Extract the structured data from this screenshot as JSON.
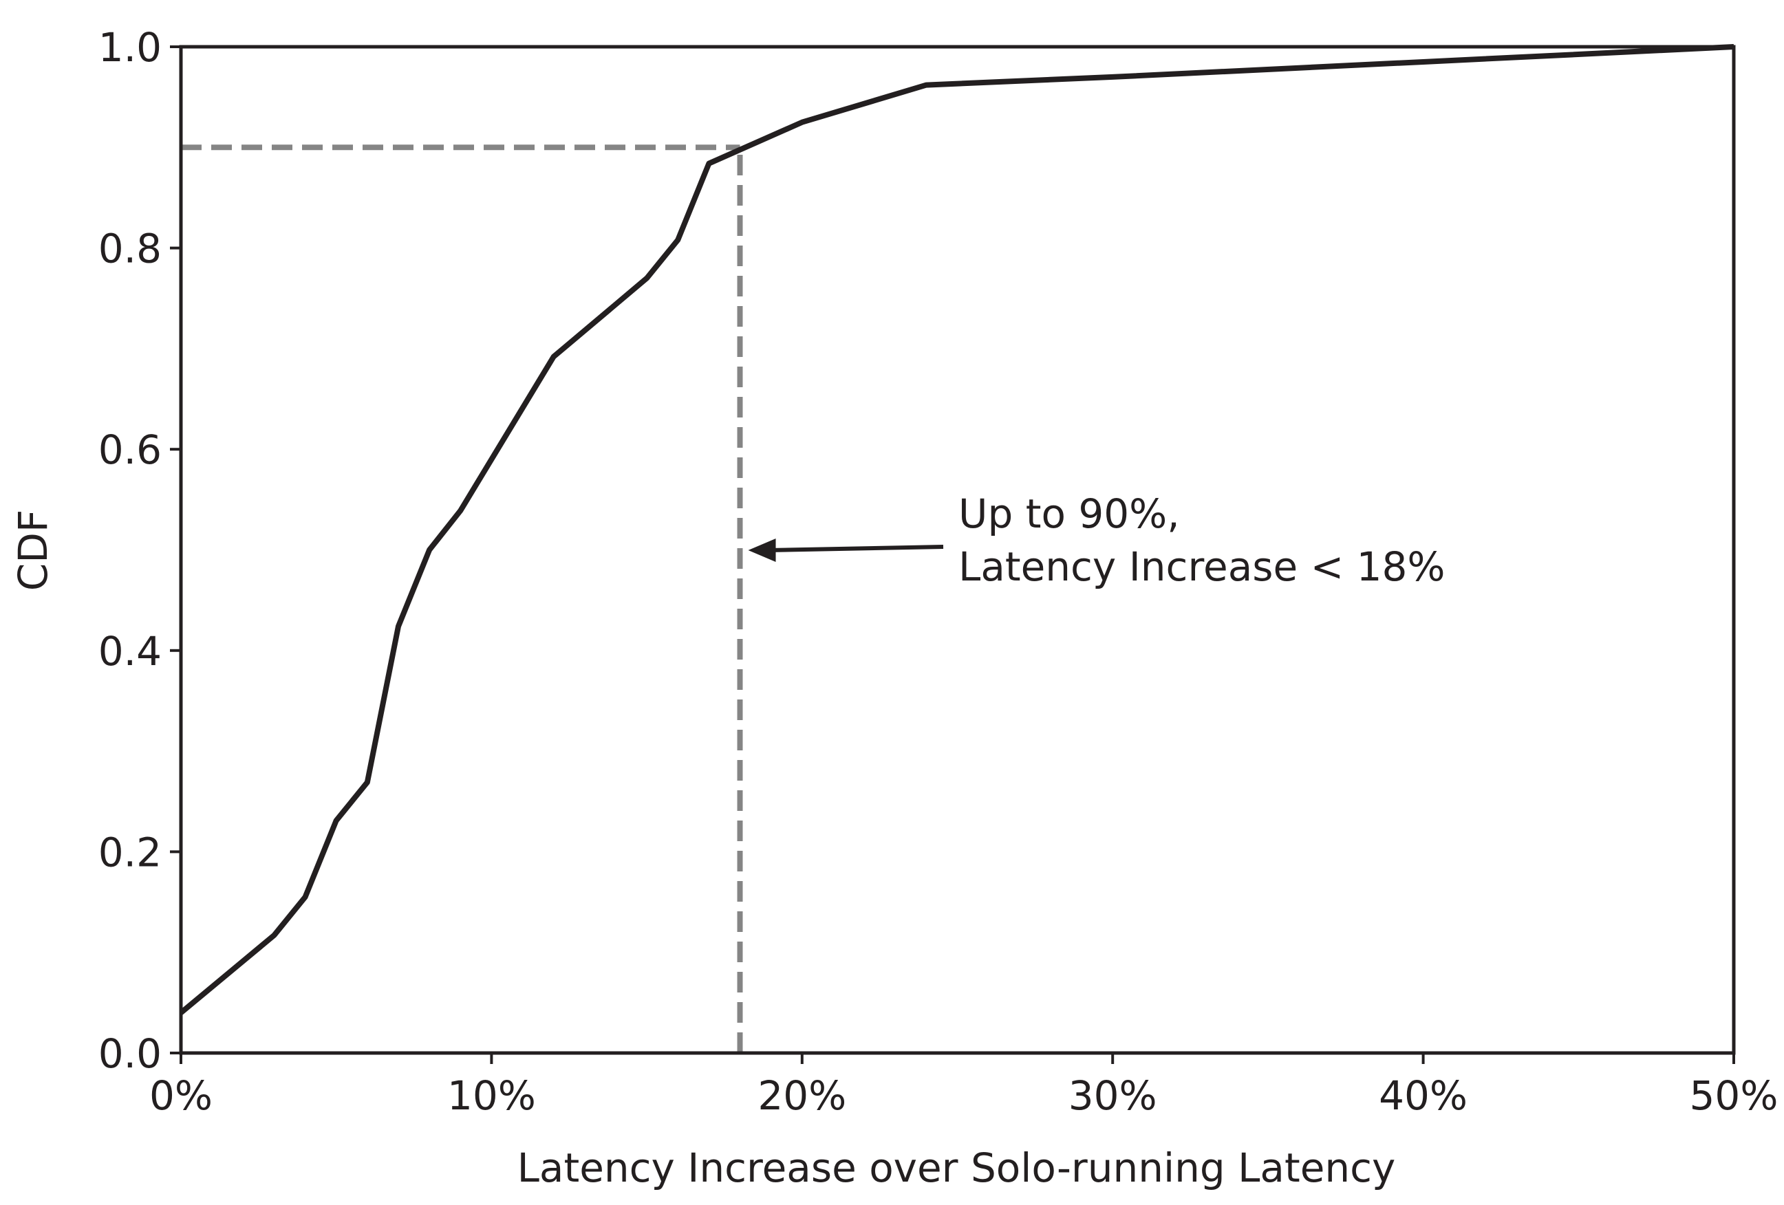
{
  "chart_data": {
    "type": "line",
    "x_label": "Latency Increase over Solo-running Latency",
    "y_label": "CDF",
    "x": [
      0,
      3,
      4,
      5,
      6,
      7,
      8,
      9,
      12,
      15,
      16,
      17,
      20,
      24,
      30,
      40,
      50
    ],
    "series": [
      {
        "color": "#231f20",
        "values": [
          0.04,
          0.117,
          0.155,
          0.231,
          0.269,
          0.424,
          0.5,
          0.539,
          0.692,
          0.77,
          0.808,
          0.884,
          0.925,
          0.962,
          0.97,
          0.985,
          1.0
        ]
      }
    ],
    "xlim": [
      0,
      50
    ],
    "ylim": [
      0,
      1
    ],
    "xticks": [
      {
        "value": 0,
        "label": "0%"
      },
      {
        "value": 10,
        "label": "10%"
      },
      {
        "value": 20,
        "label": "20%"
      },
      {
        "value": 30,
        "label": "30%"
      },
      {
        "value": 40,
        "label": "40%"
      },
      {
        "value": 50,
        "label": "50%"
      }
    ],
    "yticks": [
      {
        "value": 0,
        "label": "0.0"
      },
      0.2,
      0.4,
      0.6,
      0.8,
      {
        "value": 1,
        "label": "1.0"
      }
    ],
    "reference": {
      "x": 18,
      "y": 0.9,
      "color": "#858585"
    },
    "annotation": [
      "Up to 90%,",
      "Latency Increase < 18%"
    ]
  }
}
